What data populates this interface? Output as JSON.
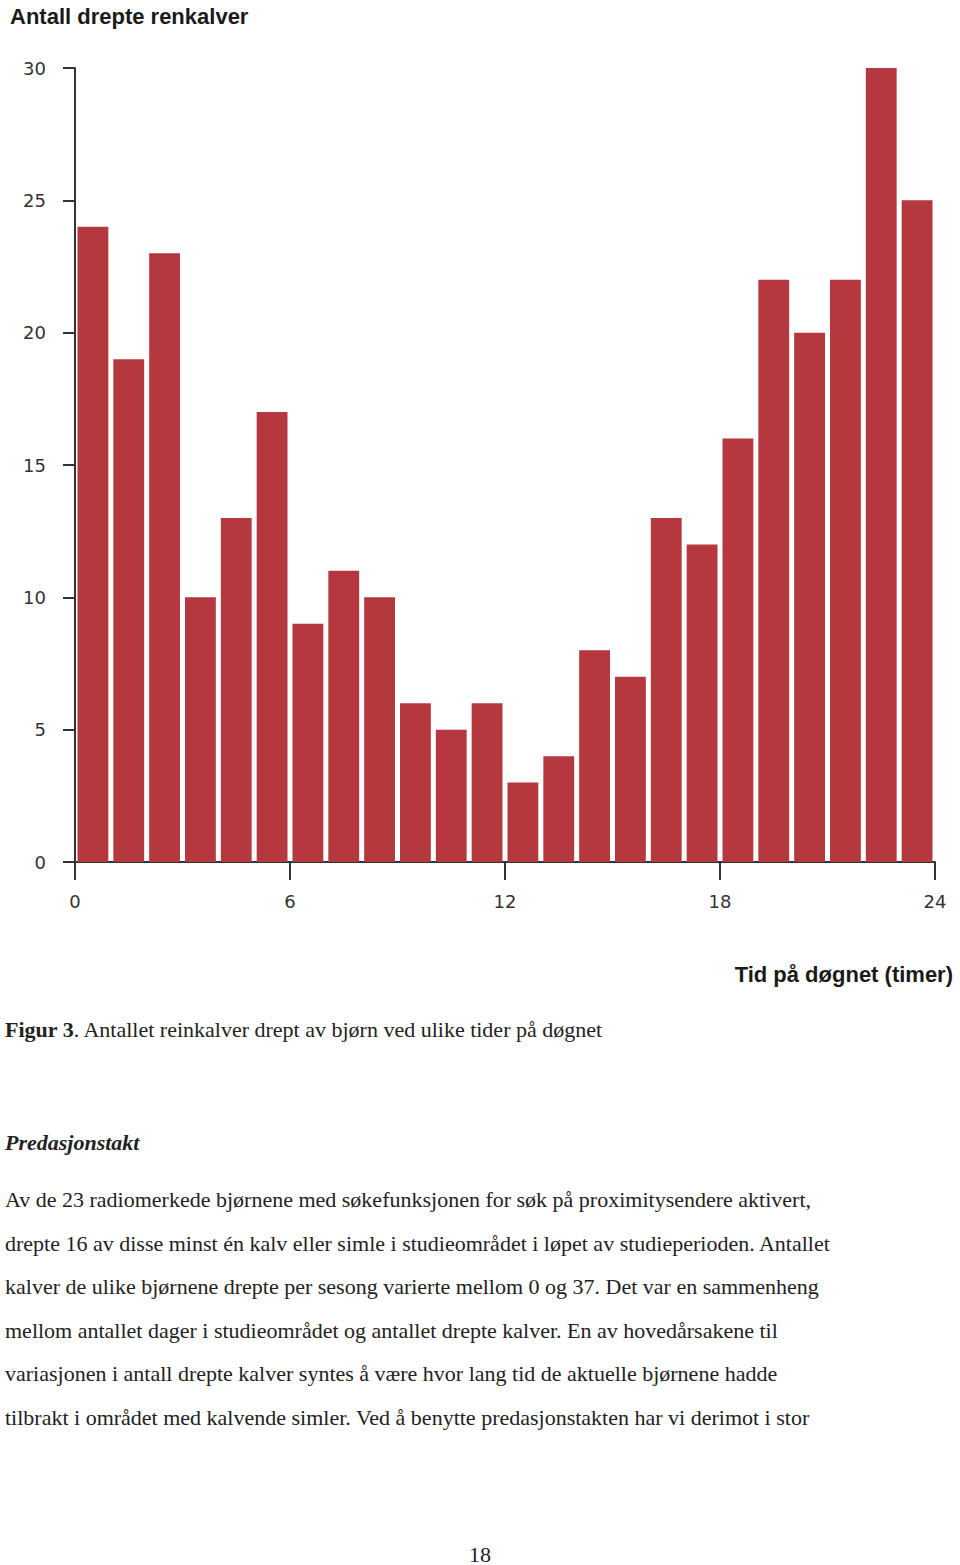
{
  "chart_data": {
    "type": "histogram",
    "title": "Antall drepte renkalver",
    "xlabel": "Tid på døgnet (timer)",
    "bins": [
      0,
      1,
      2,
      3,
      4,
      5,
      6,
      7,
      8,
      9,
      10,
      11,
      12,
      13,
      14,
      15,
      16,
      17,
      18,
      19,
      20,
      21,
      22,
      23,
      24
    ],
    "values": [
      24,
      19,
      23,
      10,
      13,
      17,
      9,
      11,
      10,
      6,
      5,
      6,
      3,
      4,
      8,
      7,
      13,
      12,
      16,
      22,
      20,
      22,
      30,
      25
    ],
    "color": "#b5383e",
    "xlim": [
      0,
      24
    ],
    "xticks": [
      0,
      6,
      12,
      18,
      24
    ],
    "ylim": [
      0,
      30
    ],
    "yticks": [
      0,
      5,
      10,
      15,
      20,
      25,
      30
    ],
    "grid": false
  },
  "document": {
    "caption": {
      "label": "Figur 3",
      "text": ". Antallet reinkalver drept av bjørn ved ulike tider på døgnet"
    },
    "heading": "Predasjonstakt",
    "paragraph_lines": [
      "Av de 23 radiomerkede bjørnene med søkefunksjonen for søk på proximitysendere aktivert,",
      "drepte 16 av disse minst én kalv eller simle i studieområdet i løpet av studieperioden. Antallet",
      "kalver de ulike bjørnene drepte per sesong varierte mellom 0 og 37. Det var en sammenheng",
      "mellom antallet dager i studieområdet og antallet drepte kalver. En av hovedårsakene til",
      "variasjonen i antall drepte kalver syntes å være hvor lang tid de aktuelle bjørnene hadde",
      "tilbrakt i området med kalvende simler. Ved å benytte predasjonstakten har vi derimot i stor"
    ],
    "page_number": "18"
  }
}
